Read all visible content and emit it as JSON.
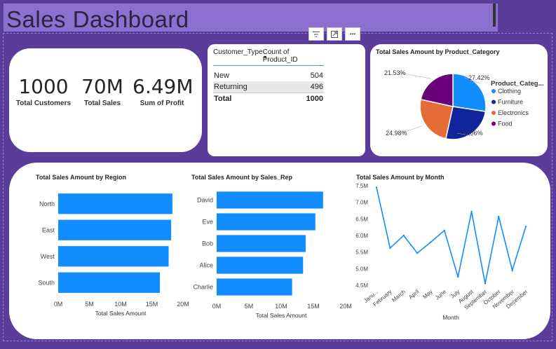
{
  "header": {
    "title": "Sales Dashboard"
  },
  "toolbar": {
    "filter_icon": "filter-icon",
    "focus_icon": "focus-mode-icon",
    "more_icon": "more-options-icon",
    "more_label": "•••"
  },
  "kpis": [
    {
      "value": "1000",
      "label": "Total Customers"
    },
    {
      "value": "70M",
      "label": "Total Sales"
    },
    {
      "value": "6.49M",
      "label": "Sum of Profit"
    }
  ],
  "table": {
    "col1": "Customer_Type",
    "col2": "Count of Product_ID",
    "rows": [
      {
        "type": "New",
        "count": "504"
      },
      {
        "type": "Returning",
        "count": "496"
      }
    ],
    "total_label": "Total",
    "total_value": "1000"
  },
  "pie": {
    "title": "Total Sales Amount by Product_Category",
    "legend_title": "Product_Categ...",
    "chart_data": {
      "type": "pie",
      "categories": [
        "Clothing",
        "Furniture",
        "Electronics",
        "Food"
      ],
      "values": [
        27.42,
        26.06,
        24.98,
        21.53
      ],
      "labels": [
        "27.42%",
        "26.06%",
        "24.98%",
        "21.53%"
      ],
      "colors": [
        "#118dff",
        "#12239e",
        "#e66c37",
        "#6b007b"
      ]
    }
  },
  "region_chart": {
    "title": "Total Sales Amount by Region",
    "chart_data": {
      "type": "bar",
      "categories": [
        "North",
        "East",
        "West",
        "South"
      ],
      "values": [
        18.3,
        18.1,
        17.7,
        16.3
      ],
      "xlabel": "Total Sales Amount",
      "xlim": [
        0,
        20
      ],
      "ticks": [
        "0M",
        "5M",
        "10M",
        "15M",
        "20M"
      ]
    }
  },
  "rep_chart": {
    "title": "Total Sales Amount by Sales_Rep",
    "chart_data": {
      "type": "bar",
      "categories": [
        "David",
        "Eve",
        "Bob",
        "Alice",
        "Charlie"
      ],
      "values": [
        16.5,
        15.3,
        13.8,
        13.4,
        11.7
      ],
      "xlabel": "Total Sales Amount",
      "xlim": [
        0,
        20
      ],
      "ticks": [
        "0M",
        "5M",
        "10M",
        "15M",
        "20M"
      ]
    }
  },
  "month_chart": {
    "title": "Total Sales Amount by Month",
    "chart_data": {
      "type": "line",
      "categories": [
        "Janu...",
        "February",
        "March",
        "April",
        "May",
        "June",
        "July",
        "August",
        "September",
        "October",
        "November",
        "December"
      ],
      "values": [
        7.45,
        5.62,
        6.0,
        5.47,
        5.8,
        6.15,
        4.75,
        6.72,
        4.55,
        6.57,
        4.95,
        6.27
      ],
      "xlabel": "Month",
      "ylim": [
        4.5,
        7.5
      ],
      "ticks": [
        "7.5M",
        "7.0M",
        "6.5M",
        "6.0M",
        "5.5M",
        "5.0M",
        "4.5M"
      ]
    }
  },
  "colors": {
    "bar": "#118dff",
    "background": "#5b3c9b",
    "title_bar": "#8d6fd0"
  }
}
